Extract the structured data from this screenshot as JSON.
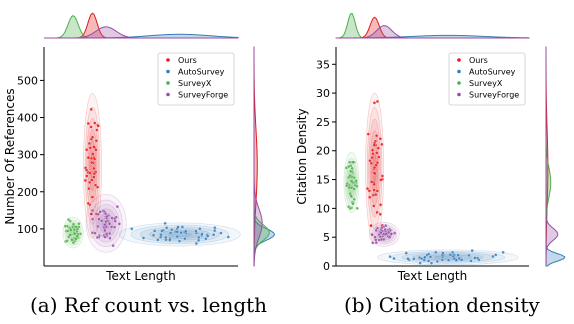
{
  "captions": {
    "a": "(a) Ref count vs. length",
    "b": "(b) Citation density"
  },
  "colors": {
    "Ours": "#e41a1c",
    "AutoSurvey": "#377eb8",
    "SurveyX": "#4daf4a",
    "SurveyForge": "#984ea3"
  },
  "chart_data": [
    {
      "type": "scatter",
      "title": "",
      "xlabel": "Text Length",
      "ylabel": "Number Of References",
      "x_ticks_shown": false,
      "xlim": [
        0,
        100
      ],
      "ylim": [
        0,
        590
      ],
      "yticks": [
        100,
        200,
        300,
        400,
        500
      ],
      "marginals": "kde (top: x, right: y)",
      "legend_position": "top-right",
      "series": [
        {
          "name": "Ours",
          "x_mean": 25,
          "x_sd": 1.8,
          "y_mean": 270,
          "y_sd": 75,
          "x_range": [
            21,
            29
          ],
          "y_range": [
            140,
            440
          ]
        },
        {
          "name": "AutoSurvey",
          "x_mean": 70,
          "x_sd": 12,
          "y_mean": 85,
          "y_sd": 12,
          "x_range": [
            45,
            95
          ],
          "y_range": [
            55,
            120
          ]
        },
        {
          "name": "SurveyX",
          "x_mean": 15,
          "x_sd": 2,
          "y_mean": 90,
          "y_sd": 16,
          "x_range": [
            11,
            19
          ],
          "y_range": [
            55,
            130
          ]
        },
        {
          "name": "SurveyForge",
          "x_mean": 32,
          "x_sd": 4,
          "y_mean": 115,
          "y_sd": 30,
          "x_range": [
            25,
            40
          ],
          "y_range": [
            55,
            185
          ]
        }
      ]
    },
    {
      "type": "scatter",
      "title": "",
      "xlabel": "Text Length",
      "ylabel": "Citation Density",
      "x_ticks_shown": false,
      "xlim": [
        0,
        100
      ],
      "ylim": [
        0,
        38
      ],
      "yticks": [
        0,
        5,
        10,
        15,
        20,
        25,
        30,
        35
      ],
      "marginals": "kde (top: x, right: y)",
      "legend_position": "top-right",
      "series": [
        {
          "name": "Ours",
          "x_mean": 20,
          "x_sd": 1.8,
          "y_mean": 17,
          "y_sd": 5,
          "x_range": [
            16,
            24
          ],
          "y_range": [
            7,
            30
          ]
        },
        {
          "name": "AutoSurvey",
          "x_mean": 58,
          "x_sd": 14,
          "y_mean": 1.5,
          "y_sd": 0.5,
          "x_range": [
            28,
            90
          ],
          "y_range": [
            0.5,
            3
          ]
        },
        {
          "name": "SurveyX",
          "x_mean": 8,
          "x_sd": 1.5,
          "y_mean": 14.5,
          "y_sd": 2,
          "x_range": [
            5,
            11
          ],
          "y_range": [
            10,
            18
          ]
        },
        {
          "name": "SurveyForge",
          "x_mean": 25,
          "x_sd": 3,
          "y_mean": 5.5,
          "y_sd": 0.8,
          "x_range": [
            18,
            32
          ],
          "y_range": [
            4,
            7
          ]
        }
      ]
    }
  ]
}
